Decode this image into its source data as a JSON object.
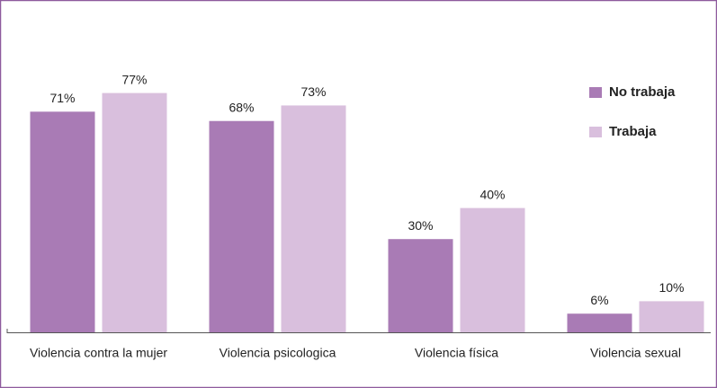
{
  "chart_data": {
    "type": "bar",
    "categories": [
      "Violencia contra la mujer",
      "Violencia psicologica",
      "Violencia física",
      "Violencia sexual"
    ],
    "series": [
      {
        "name": "No trabaja",
        "color": "#a97bb5",
        "values": [
          71,
          68,
          30,
          6
        ],
        "value_labels": [
          "71%",
          "68%",
          "30%",
          "6%"
        ]
      },
      {
        "name": "Trabaja",
        "color": "#d9bfdd",
        "values": [
          77,
          73,
          40,
          10
        ],
        "value_labels": [
          "77%",
          "73%",
          "40%",
          "10%"
        ]
      }
    ],
    "ylim": [
      0,
      100
    ],
    "legend": "top-right"
  }
}
